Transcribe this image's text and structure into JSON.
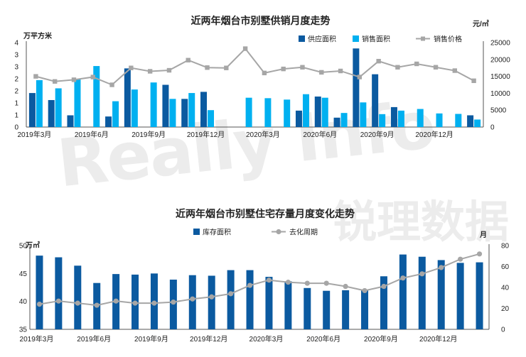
{
  "watermark": {
    "text": "Really Info",
    "cn": "锐理数据"
  },
  "chart_data": [
    {
      "type": "bar",
      "title": "近两年烟台市别墅供销月度走势",
      "left_unit": "万平方米",
      "right_unit": "元/㎡",
      "categories": [
        "2019年3月",
        "2019年4月",
        "2019年5月",
        "2019年6月",
        "2019年7月",
        "2019年8月",
        "2019年9月",
        "2019年10月",
        "2019年11月",
        "2019年12月",
        "2020年1月",
        "2020年2月",
        "2020年3月",
        "2020年4月",
        "2020年5月",
        "2020年6月",
        "2020年7月",
        "2020年8月",
        "2020年9月",
        "2020年10月",
        "2020年11月",
        "2020年12月",
        "2021年1月",
        "2021年2月"
      ],
      "x_tick_labels": [
        "2019年3月",
        "2019年6月",
        "2019年9月",
        "2019年12月",
        "2020年3月",
        "2020年6月",
        "2020年9月",
        "2020年12月"
      ],
      "x_tick_indices": [
        0,
        3,
        6,
        9,
        12,
        15,
        18,
        21
      ],
      "y_left_ticks": [
        "0",
        "1",
        "1",
        "2",
        "2",
        "3",
        "3",
        "4"
      ],
      "ylim_left": [
        0,
        3.6
      ],
      "y_right_ticks": [
        "0",
        "5000",
        "10000",
        "15000",
        "20000",
        "25000"
      ],
      "ylim_right": [
        0,
        25000
      ],
      "series": [
        {
          "name": "供应面积",
          "kind": "bar",
          "axis": "left",
          "color": "#0b5aa0",
          "values": [
            1.45,
            1.15,
            0.5,
            0,
            0.45,
            2.5,
            0,
            1.8,
            1.2,
            1.5,
            0,
            0,
            0,
            0,
            0.7,
            1.3,
            0.4,
            3.35,
            2.25,
            0.85,
            0,
            0,
            0,
            0.5
          ]
        },
        {
          "name": "销售面积",
          "kind": "bar",
          "axis": "left",
          "color": "#00b0f0",
          "values": [
            2.0,
            1.65,
            2.05,
            2.6,
            1.1,
            1.6,
            1.9,
            1.2,
            1.45,
            0.72,
            0,
            1.25,
            1.23,
            1.17,
            1.4,
            1.25,
            0.6,
            1.05,
            0.55,
            0.7,
            0.77,
            0.58,
            0.56,
            0.32
          ]
        },
        {
          "name": "销售价格",
          "kind": "line",
          "axis": "right",
          "color": "#a6a6a6",
          "values": [
            15000,
            13500,
            14000,
            14800,
            12500,
            17500,
            16500,
            16800,
            19800,
            17600,
            17500,
            23200,
            16000,
            17200,
            17700,
            16200,
            16600,
            14800,
            19500,
            17700,
            18700,
            17700,
            16700,
            13700
          ]
        }
      ]
    },
    {
      "type": "bar",
      "title": "近两年烟台市别墅住宅存量月度变化走势",
      "left_unit": "万㎡",
      "right_unit": "月",
      "categories": [
        "2019年3月",
        "2019年4月",
        "2019年5月",
        "2019年6月",
        "2019年7月",
        "2019年8月",
        "2019年9月",
        "2019年10月",
        "2019年11月",
        "2019年12月",
        "2020年1月",
        "2020年2月",
        "2020年3月",
        "2020年4月",
        "2020年5月",
        "2020年6月",
        "2020年7月",
        "2020年8月",
        "2020年9月",
        "2020年10月",
        "2020年11月",
        "2020年12月",
        "2021年1月",
        "2021年2月"
      ],
      "x_tick_labels": [
        "2019年3月",
        "2019年6月",
        "2019年9月",
        "2019年12月",
        "2020年3月",
        "2020年6月",
        "2020年9月",
        "2020年12月"
      ],
      "x_tick_indices": [
        0,
        3,
        6,
        9,
        12,
        15,
        18,
        21
      ],
      "y_left_ticks": [
        "35",
        "40",
        "45",
        "50"
      ],
      "ylim_left": [
        35,
        50
      ],
      "y_right_ticks": [
        "0",
        "20",
        "40",
        "60",
        "80"
      ],
      "ylim_right": [
        0,
        80
      ],
      "series": [
        {
          "name": "库存面积",
          "kind": "bar",
          "axis": "left",
          "color": "#0b5aa0",
          "values": [
            48.2,
            47.9,
            46.4,
            43.3,
            44.9,
            44.8,
            45.0,
            43.9,
            44.7,
            44.6,
            45.6,
            45.6,
            44.4,
            43.6,
            42.4,
            41.9,
            42.0,
            42.0,
            44.5,
            48.4,
            48.0,
            47.4,
            46.9,
            47.0
          ]
        },
        {
          "name": "去化周期",
          "kind": "line",
          "axis": "right",
          "color": "#a6a6a6",
          "values": [
            24,
            27,
            25,
            23,
            27,
            25,
            25,
            26,
            29,
            31,
            34,
            42,
            47,
            45,
            44,
            44,
            41,
            37,
            41,
            49,
            53,
            59,
            67,
            72
          ]
        }
      ]
    }
  ]
}
